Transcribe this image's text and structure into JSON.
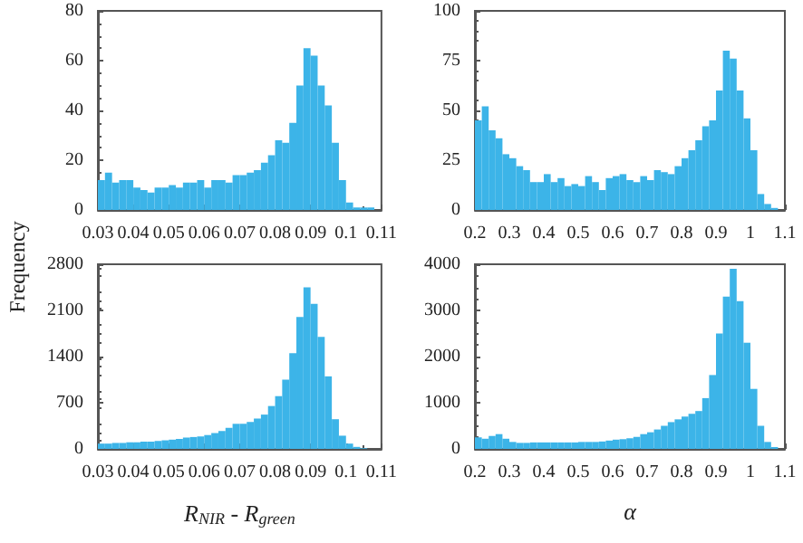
{
  "chart_data": [
    {
      "type": "histogram",
      "ylabel": "Frequency",
      "color": "#3cb4e8",
      "xlim": [
        0.03,
        0.11
      ],
      "xticks": [
        0.03,
        0.04,
        0.05,
        0.06,
        0.07,
        0.08,
        0.09,
        0.1,
        0.11
      ],
      "ylim": [
        0,
        80
      ],
      "yticks": [
        0,
        20,
        40,
        60,
        80
      ],
      "bins": [
        0.03,
        0.032,
        0.034,
        0.036,
        0.038,
        0.04,
        0.042,
        0.044,
        0.046,
        0.048,
        0.05,
        0.052,
        0.054,
        0.056,
        0.058,
        0.06,
        0.062,
        0.064,
        0.066,
        0.068,
        0.07,
        0.072,
        0.074,
        0.076,
        0.078,
        0.08,
        0.082,
        0.084,
        0.086,
        0.088,
        0.09,
        0.092,
        0.094,
        0.096,
        0.098,
        0.1,
        0.102,
        0.104,
        0.106,
        0.108,
        0.11
      ],
      "values": [
        12,
        15,
        11,
        12,
        12,
        9,
        8,
        7,
        9,
        9,
        10,
        9,
        11,
        11,
        12,
        9,
        12,
        12,
        11,
        14,
        14,
        15,
        16,
        19,
        22,
        28,
        27,
        35,
        50,
        65,
        62,
        50,
        42,
        27,
        12,
        3,
        1,
        1,
        1,
        0
      ]
    },
    {
      "type": "histogram",
      "color": "#3cb4e8",
      "xlim": [
        0.2,
        1.1
      ],
      "xticks": [
        0.2,
        0.3,
        0.4,
        0.5,
        0.6,
        0.7,
        0.8,
        0.9,
        1,
        1.1
      ],
      "ylim": [
        0,
        100
      ],
      "yticks": [
        0,
        25,
        50,
        75,
        100
      ],
      "bins": [
        0.2,
        0.22,
        0.24,
        0.26,
        0.28,
        0.3,
        0.32,
        0.34,
        0.36,
        0.38,
        0.4,
        0.42,
        0.44,
        0.46,
        0.48,
        0.5,
        0.52,
        0.54,
        0.56,
        0.58,
        0.6,
        0.62,
        0.64,
        0.66,
        0.68,
        0.7,
        0.72,
        0.74,
        0.76,
        0.78,
        0.8,
        0.82,
        0.84,
        0.86,
        0.88,
        0.9,
        0.92,
        0.94,
        0.96,
        0.98,
        1,
        1.02,
        1.04,
        1.06,
        1.08,
        1.1
      ],
      "values": [
        45,
        52,
        40,
        36,
        28,
        26,
        22,
        20,
        14,
        14,
        18,
        14,
        16,
        12,
        13,
        12,
        17,
        14,
        10,
        16,
        17,
        18,
        15,
        14,
        17,
        15,
        20,
        19,
        18,
        22,
        26,
        30,
        35,
        42,
        45,
        60,
        80,
        76,
        60,
        46,
        30,
        8,
        3,
        1,
        0
      ]
    },
    {
      "type": "histogram",
      "xlabel": "R$_{NIR}$ - R$_{green}$",
      "color": "#3cb4e8",
      "xlim": [
        0.03,
        0.11
      ],
      "xticks": [
        0.03,
        0.04,
        0.05,
        0.06,
        0.07,
        0.08,
        0.09,
        0.1,
        0.11
      ],
      "ylim": [
        0,
        2800
      ],
      "yticks": [
        0,
        700,
        1400,
        2100,
        2800
      ],
      "bins": [
        0.03,
        0.032,
        0.034,
        0.036,
        0.038,
        0.04,
        0.042,
        0.044,
        0.046,
        0.048,
        0.05,
        0.052,
        0.054,
        0.056,
        0.058,
        0.06,
        0.062,
        0.064,
        0.066,
        0.068,
        0.07,
        0.072,
        0.074,
        0.076,
        0.078,
        0.08,
        0.082,
        0.084,
        0.086,
        0.088,
        0.09,
        0.092,
        0.094,
        0.096,
        0.098,
        0.1,
        0.102,
        0.104,
        0.106,
        0.108,
        0.11
      ],
      "values": [
        80,
        80,
        90,
        90,
        100,
        100,
        110,
        110,
        120,
        130,
        140,
        150,
        170,
        180,
        190,
        210,
        240,
        270,
        320,
        380,
        380,
        410,
        460,
        520,
        650,
        800,
        1050,
        1450,
        2000,
        2450,
        2200,
        1700,
        1100,
        450,
        200,
        80,
        30,
        10,
        0,
        0
      ]
    },
    {
      "type": "histogram",
      "xlabel": "α",
      "color": "#3cb4e8",
      "xlim": [
        0.2,
        1.1
      ],
      "xticks": [
        0.2,
        0.3,
        0.4,
        0.5,
        0.6,
        0.7,
        0.8,
        0.9,
        1,
        1.1
      ],
      "ylim": [
        0,
        4000
      ],
      "yticks": [
        0,
        1000,
        2000,
        3000,
        4000
      ],
      "bins": [
        0.2,
        0.22,
        0.24,
        0.26,
        0.28,
        0.3,
        0.32,
        0.34,
        0.36,
        0.38,
        0.4,
        0.42,
        0.44,
        0.46,
        0.48,
        0.5,
        0.52,
        0.54,
        0.56,
        0.58,
        0.6,
        0.62,
        0.64,
        0.66,
        0.68,
        0.7,
        0.72,
        0.74,
        0.76,
        0.78,
        0.8,
        0.82,
        0.84,
        0.86,
        0.88,
        0.9,
        0.92,
        0.94,
        0.96,
        0.98,
        1,
        1.02,
        1.04,
        1.06,
        1.08,
        1.1
      ],
      "values": [
        250,
        220,
        280,
        320,
        220,
        150,
        130,
        130,
        140,
        140,
        140,
        140,
        140,
        140,
        140,
        150,
        150,
        150,
        160,
        180,
        200,
        210,
        230,
        260,
        320,
        360,
        420,
        500,
        580,
        640,
        700,
        760,
        820,
        1100,
        1600,
        2500,
        3300,
        3900,
        3200,
        2300,
        1300,
        500,
        150,
        40,
        0
      ]
    }
  ]
}
